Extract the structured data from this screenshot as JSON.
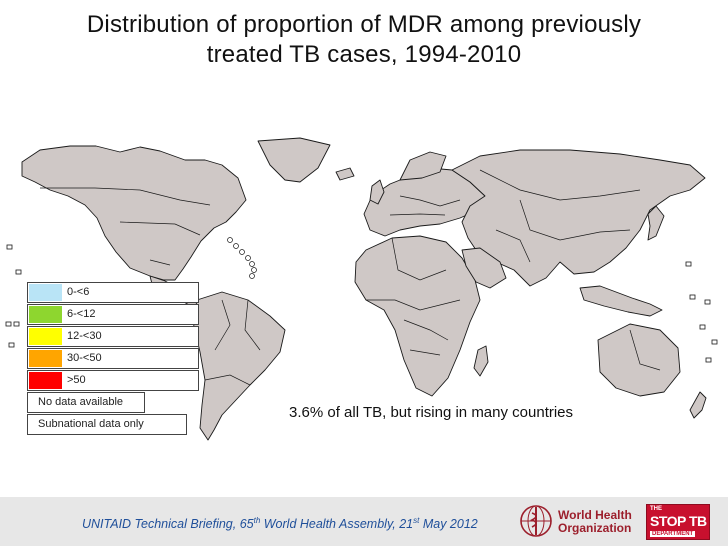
{
  "title": {
    "line1": "Distribution of proportion of MDR among previously",
    "line2": "treated TB cases, 1994-2010"
  },
  "map": {
    "land_color": "#cfc8c6",
    "border_color": "#1a1a1a",
    "ocean_color": "#ffffff"
  },
  "legend": [
    {
      "label": "0-<6",
      "color": "#b9e4f6"
    },
    {
      "label": "6-<12",
      "color": "#8ed62f"
    },
    {
      "label": "12-<30",
      "color": "#ffff00"
    },
    {
      "label": "30-<50",
      "color": "#ffa500"
    },
    {
      "label": ">50",
      "color": "#ff0000"
    },
    {
      "label": "No data available",
      "color": "#ffffff"
    },
    {
      "label": "Subnational data only",
      "color": "#ffffff"
    }
  ],
  "annotation": "3.6% of all TB, but rising in many countries",
  "footer": {
    "pre": "UNITAID Technical Briefing, 65",
    "sup1": "th",
    "mid": " World Health Assembly, 21",
    "sup2": "st",
    "post": " May 2012",
    "who_line1": "World Health",
    "who_line2": "Organization",
    "stoptb_the": "THE",
    "stoptb_main": "STOP TB",
    "stoptb_dept": "DEPARTMENT"
  }
}
